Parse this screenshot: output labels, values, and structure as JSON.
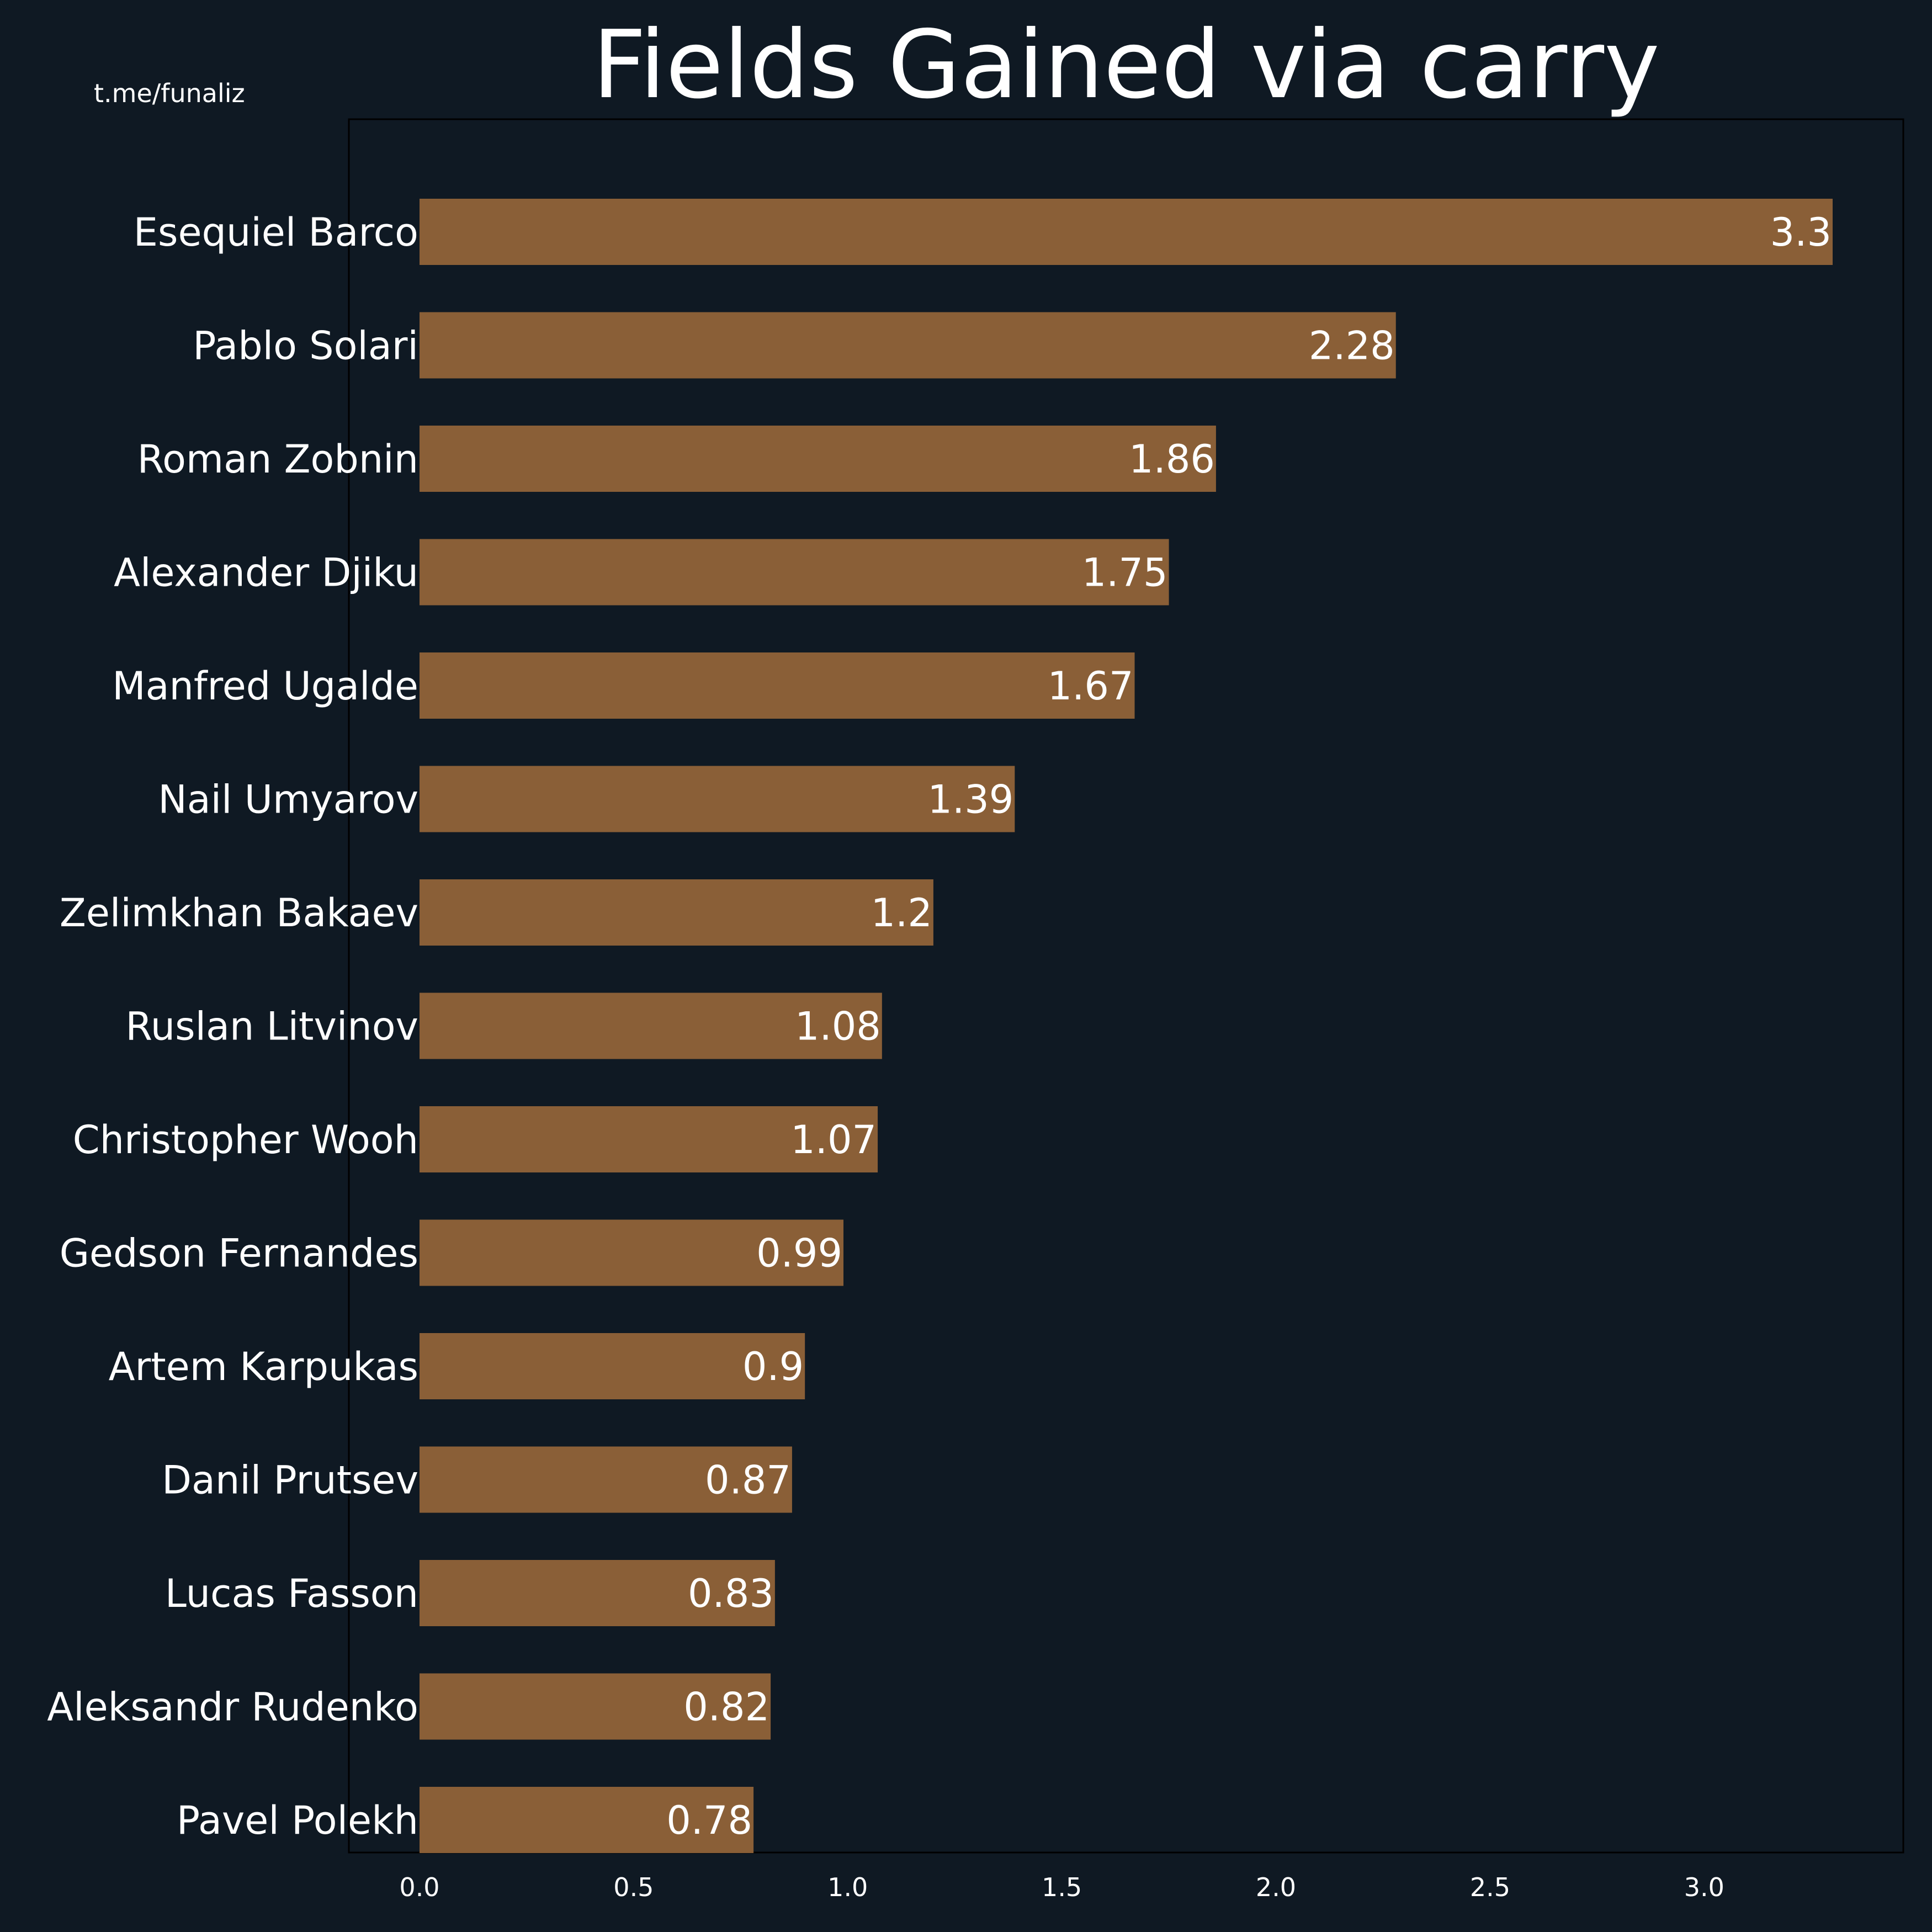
{
  "watermark": "t.me/funaliz",
  "colors": {
    "background": "#0f1923",
    "bar": "#8a5f37",
    "text": "#ffffff",
    "frame": "#000000"
  },
  "chart_data": {
    "type": "bar",
    "orientation": "horizontal",
    "title": "Fields Gained via carry",
    "xlabel": "",
    "ylabel": "",
    "categories": [
      "Esequiel Barco",
      "Pablo Solari",
      "Roman Zobnin",
      "Alexander Djiku",
      "Manfred Ugalde",
      "Nail Umyarov",
      "Zelimkhan Bakaev",
      "Ruslan Litvinov",
      "Christopher Wooh",
      "Gedson Fernandes",
      "Artem Karpukas",
      "Danil Prutsev",
      "Lucas Fasson",
      "Aleksandr Rudenko",
      "Pavel Polekh"
    ],
    "values": [
      3.3,
      2.28,
      1.86,
      1.75,
      1.67,
      1.39,
      1.2,
      1.08,
      1.07,
      0.99,
      0.9,
      0.87,
      0.83,
      0.82,
      0.78
    ],
    "value_labels": [
      "3.3",
      "2.28",
      "1.86",
      "1.75",
      "1.67",
      "1.39",
      "1.2",
      "1.08",
      "1.07",
      "0.99",
      "0.9",
      "0.87",
      "0.83",
      "0.82",
      "0.78"
    ],
    "xticks": [
      0.0,
      0.5,
      1.0,
      1.5,
      2.0,
      2.5,
      3.0
    ],
    "xtick_labels": [
      "0.0",
      "0.5",
      "1.0",
      "1.5",
      "2.0",
      "2.5",
      "3.0"
    ],
    "xlim": [
      -0.165,
      3.465
    ],
    "grid": false,
    "legend": "none"
  }
}
